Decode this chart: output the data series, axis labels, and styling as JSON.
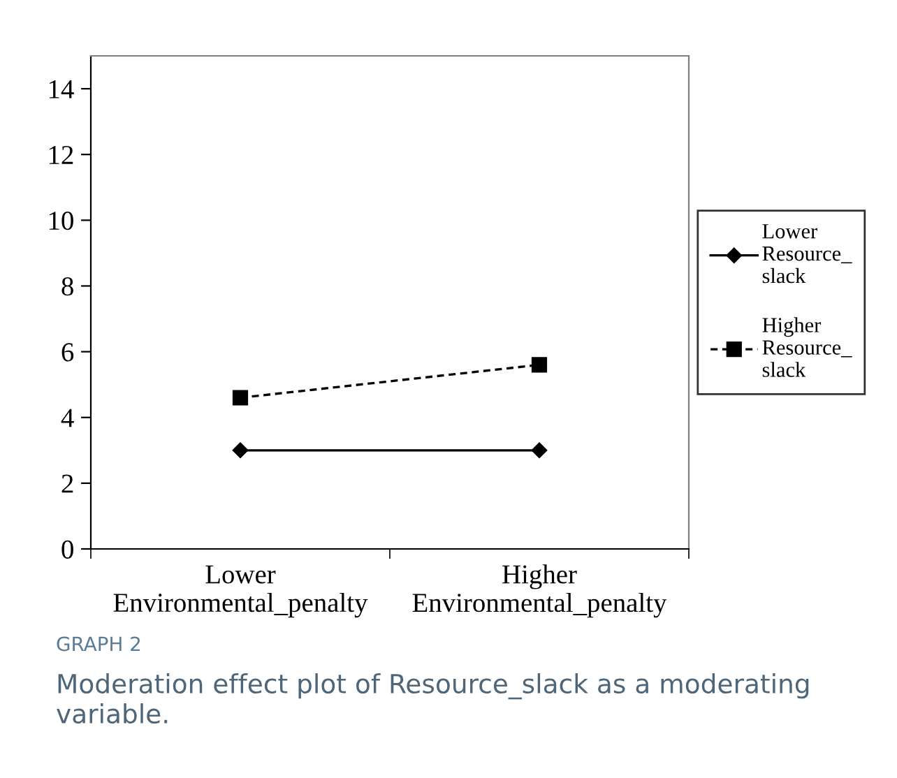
{
  "chart_data": {
    "type": "line",
    "title": "GRAPH 2",
    "subtitle": "Moderation effect plot of Resource_slack as a moderating variable.",
    "categories": [
      "Lower Environmental_penalty",
      "Higher Environmental_penalty"
    ],
    "series": [
      {
        "name": "Lower Resource_slack",
        "color": "#000000",
        "values": [
          3.0,
          3.0
        ],
        "marker": "diamond",
        "line_style": "solid"
      },
      {
        "name": "Higher Resource_slack",
        "color": "#000000",
        "values": [
          4.6,
          5.6
        ],
        "marker": "square",
        "line_style": "dashed"
      }
    ],
    "ylim": [
      0,
      15
    ],
    "yticks": [
      0,
      2,
      4,
      6,
      8,
      10,
      12,
      14
    ],
    "grid": false,
    "legend": "right"
  }
}
